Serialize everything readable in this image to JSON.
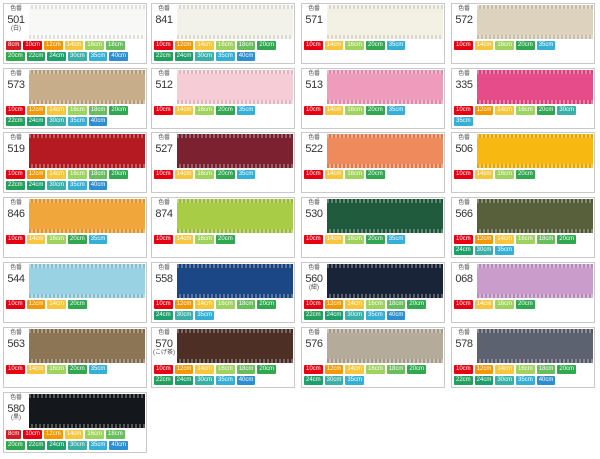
{
  "label_prefix": "色番",
  "size_colors": {
    "8cm": "#d31d24",
    "10cm": "#e60012",
    "12cm": "#f39800",
    "14cm": "#f7c63c",
    "16cm": "#9fd25e",
    "18cm": "#68bd5d",
    "20cm": "#2fa84f",
    "22cm": "#23a05b",
    "24cm": "#1ea06c",
    "30cm": "#3ab0a8",
    "35cm": "#34b0d6",
    "40cm": "#2d8fd0",
    "45cm": "#3a79c6",
    "50cm": "#2459b8"
  },
  "cards": [
    {
      "code": "501",
      "note": "(白)",
      "color": "#f8f8f6",
      "sizes": [
        "8cm",
        "10cm",
        "12cm",
        "14cm",
        "16cm",
        "18cm",
        "20cm",
        "22cm",
        "24cm",
        "30cm",
        "35cm",
        "40cm"
      ]
    },
    {
      "code": "841",
      "note": "",
      "color": "#f3f2ea",
      "sizes": [
        "10cm",
        "12cm",
        "14cm",
        "16cm",
        "18cm",
        "20cm",
        "22cm",
        "24cm",
        "30cm",
        "35cm",
        "40cm"
      ]
    },
    {
      "code": "571",
      "note": "",
      "color": "#f3f1e3",
      "sizes": [
        "10cm",
        "14cm",
        "16cm",
        "20cm",
        "35cm"
      ]
    },
    {
      "code": "572",
      "note": "",
      "color": "#dcd2bd",
      "sizes": [
        "10cm",
        "14cm",
        "16cm",
        "20cm",
        "35cm"
      ]
    },
    {
      "code": "573",
      "note": "",
      "color": "#c8ad8a",
      "sizes": [
        "10cm",
        "12cm",
        "14cm",
        "16cm",
        "18cm",
        "20cm",
        "22cm",
        "24cm",
        "30cm",
        "35cm",
        "40cm"
      ]
    },
    {
      "code": "512",
      "note": "",
      "color": "#f6cdd6",
      "sizes": [
        "10cm",
        "14cm",
        "16cm",
        "20cm",
        "35cm"
      ]
    },
    {
      "code": "513",
      "note": "",
      "color": "#ef9cbc",
      "sizes": [
        "10cm",
        "14cm",
        "16cm",
        "20cm",
        "35cm"
      ]
    },
    {
      "code": "335",
      "note": "",
      "color": "#e64c8a",
      "sizes": [
        "10cm",
        "12cm",
        "14cm",
        "16cm",
        "20cm",
        "30cm",
        "35cm"
      ]
    },
    {
      "code": "519",
      "note": "",
      "color": "#b51a23",
      "sizes": [
        "10cm",
        "12cm",
        "14cm",
        "16cm",
        "18cm",
        "20cm",
        "22cm",
        "24cm",
        "30cm",
        "35cm",
        "40cm"
      ]
    },
    {
      "code": "527",
      "note": "",
      "color": "#7c2130",
      "sizes": [
        "10cm",
        "14cm",
        "16cm",
        "20cm",
        "35cm"
      ]
    },
    {
      "code": "522",
      "note": "",
      "color": "#ee8a5c",
      "sizes": [
        "10cm",
        "14cm",
        "16cm",
        "20cm"
      ]
    },
    {
      "code": "506",
      "note": "",
      "color": "#f7b911",
      "sizes": [
        "10cm",
        "14cm",
        "16cm",
        "20cm"
      ]
    },
    {
      "code": "846",
      "note": "",
      "color": "#f0a63a",
      "sizes": [
        "10cm",
        "14cm",
        "16cm",
        "20cm",
        "35cm"
      ]
    },
    {
      "code": "874",
      "note": "",
      "color": "#a9cc46",
      "sizes": [
        "10cm",
        "14cm",
        "16cm",
        "20cm"
      ]
    },
    {
      "code": "530",
      "note": "",
      "color": "#1f5b3c",
      "sizes": [
        "10cm",
        "14cm",
        "16cm",
        "20cm",
        "35cm"
      ]
    },
    {
      "code": "566",
      "note": "",
      "color": "#58603b",
      "sizes": [
        "10cm",
        "12cm",
        "14cm",
        "16cm",
        "18cm",
        "20cm",
        "24cm",
        "30cm",
        "35cm"
      ]
    },
    {
      "code": "544",
      "note": "",
      "color": "#99d2e2",
      "sizes": [
        "10cm",
        "12cm",
        "14cm",
        "20cm"
      ]
    },
    {
      "code": "558",
      "note": "",
      "color": "#1b4786",
      "sizes": [
        "10cm",
        "12cm",
        "14cm",
        "16cm",
        "18cm",
        "20cm",
        "24cm",
        "30cm",
        "35cm"
      ]
    },
    {
      "code": "560",
      "note": "(紺)",
      "color": "#1a2438",
      "sizes": [
        "10cm",
        "12cm",
        "14cm",
        "16cm",
        "18cm",
        "20cm",
        "22cm",
        "24cm",
        "30cm",
        "35cm",
        "40cm"
      ]
    },
    {
      "code": "068",
      "note": "",
      "color": "#c99ccc",
      "sizes": [
        "10cm",
        "14cm",
        "16cm",
        "20cm"
      ]
    },
    {
      "code": "563",
      "note": "",
      "color": "#8c7554",
      "sizes": [
        "10cm",
        "14cm",
        "16cm",
        "20cm",
        "35cm"
      ]
    },
    {
      "code": "570",
      "note": "(こげ茶)",
      "color": "#4d2f25",
      "sizes": [
        "10cm",
        "12cm",
        "14cm",
        "16cm",
        "18cm",
        "20cm",
        "22cm",
        "24cm",
        "30cm",
        "35cm",
        "40cm"
      ]
    },
    {
      "code": "576",
      "note": "",
      "color": "#b5ab9a",
      "sizes": [
        "10cm",
        "12cm",
        "14cm",
        "16cm",
        "18cm",
        "20cm",
        "24cm",
        "30cm",
        "35cm"
      ]
    },
    {
      "code": "578",
      "note": "",
      "color": "#5d6270",
      "sizes": [
        "10cm",
        "12cm",
        "14cm",
        "16cm",
        "18cm",
        "20cm",
        "22cm",
        "24cm",
        "30cm",
        "35cm",
        "40cm"
      ]
    },
    {
      "code": "580",
      "note": "(黒)",
      "color": "#14171b",
      "sizes": [
        "8cm",
        "10cm",
        "12cm",
        "14cm",
        "16cm",
        "18cm",
        "20cm",
        "22cm",
        "24cm",
        "30cm",
        "35cm",
        "40cm",
        "45cm",
        "50cm"
      ]
    }
  ]
}
